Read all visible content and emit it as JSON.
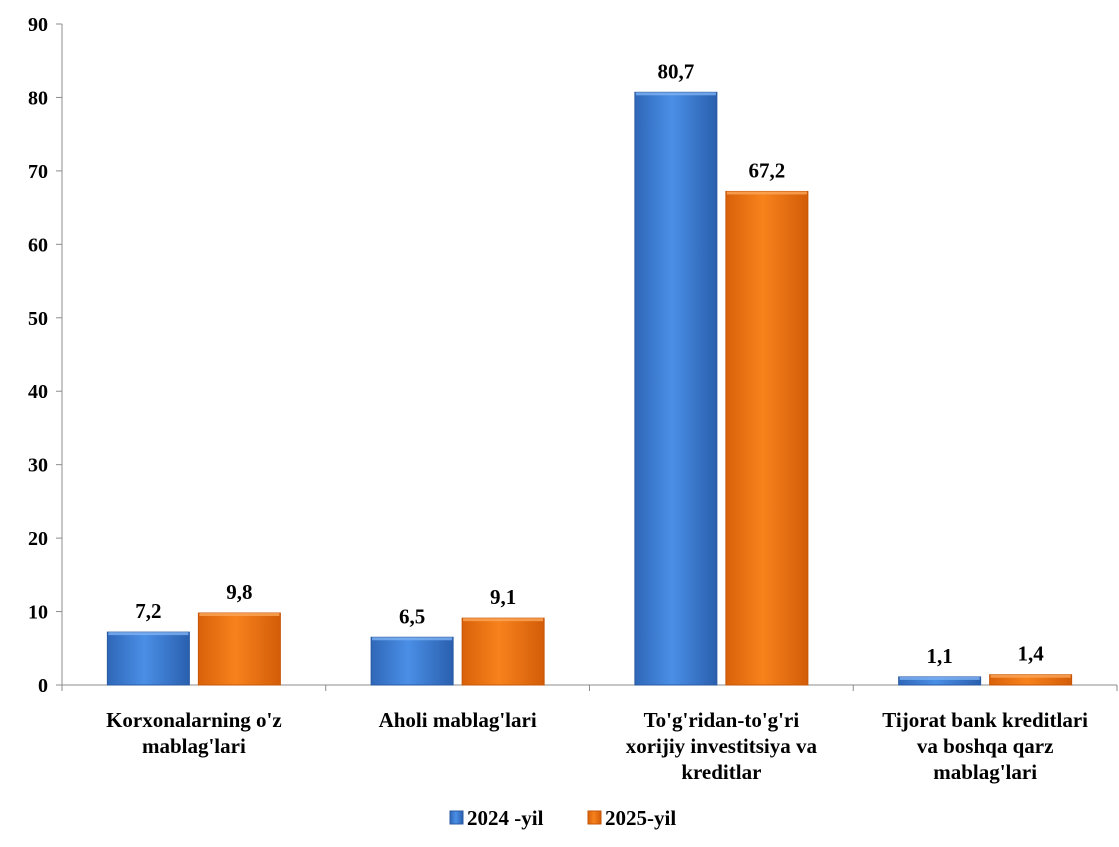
{
  "chart_data": {
    "type": "bar",
    "categories": [
      [
        "Korxonalarning o'z",
        "mablag'lari"
      ],
      [
        "Aholi mablag'lari"
      ],
      [
        "To'g'ridan-to'g'ri",
        "xorijiy investitsiya  va",
        "kreditlar"
      ],
      [
        "Tijorat bank kreditlari",
        "va boshqa  qarz",
        "mablag'lari"
      ]
    ],
    "series": [
      {
        "name": "2024 -yil",
        "values": [
          7.2,
          6.5,
          80.7,
          1.1
        ],
        "labels": [
          "7,2",
          "6,5",
          "80,7",
          "1,1"
        ],
        "color": "#3E7FD6"
      },
      {
        "name": "2025-yil",
        "values": [
          9.8,
          9.1,
          67.2,
          1.4
        ],
        "labels": [
          "9,8",
          "9,1",
          "67,2",
          "1,4"
        ],
        "color": "#F0720F"
      }
    ],
    "yticks": [
      0,
      10,
      20,
      30,
      40,
      50,
      60,
      70,
      80,
      90
    ],
    "ylim": [
      0,
      90
    ],
    "grid": false,
    "legend": "bottom"
  }
}
